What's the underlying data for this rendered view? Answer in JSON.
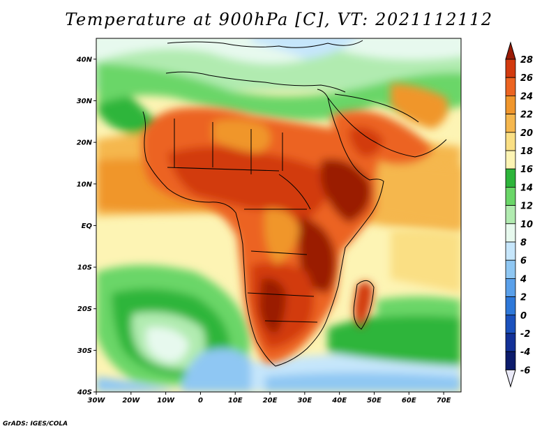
{
  "title": "Temperature at 900hPa [C], VT: 2021112112",
  "credit": "GrADS: IGES/COLA",
  "map": {
    "lon_labels": [
      "30W",
      "20W",
      "10W",
      "0",
      "10E",
      "20E",
      "30E",
      "40E",
      "50E",
      "60E",
      "70E"
    ],
    "lat_labels": [
      "40N",
      "30N",
      "20N",
      "10N",
      "EQ",
      "10S",
      "20S",
      "30S",
      "40S"
    ],
    "lon_range": [
      -30,
      75
    ],
    "lat_range": [
      -40,
      45
    ]
  },
  "colorbar": {
    "labels": [
      "28",
      "26",
      "24",
      "22",
      "20",
      "18",
      "16",
      "14",
      "12",
      "10",
      "8",
      "6",
      "4",
      "2",
      "0",
      "-2",
      "-4",
      "-6"
    ],
    "colors": [
      "#9a1b06",
      "#d23a0f",
      "#ec6421",
      "#f0962c",
      "#f5b74e",
      "#fadf84",
      "#fdf4b4",
      "#2db53a",
      "#6ad668",
      "#b1ebb0",
      "#e7f9ee",
      "#c6e6fb",
      "#8fc7f3",
      "#5aa0ea",
      "#2e78d9",
      "#1b51bd",
      "#133197",
      "#0c1b6b",
      "#eaeaf8"
    ]
  }
}
